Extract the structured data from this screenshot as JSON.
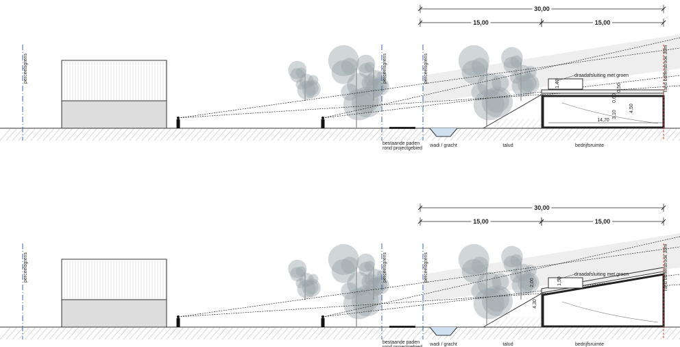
{
  "sections": [
    {
      "dimensions": {
        "total": "30,00",
        "left": "15,00",
        "right": "15,00"
      },
      "boundaries": [
        "perceelsgrens",
        "perceelsgrens",
        "perceelsgrens"
      ],
      "fence_label": "draadafsluiting met groen",
      "buffer_label": "rand bufferstrook 30m",
      "measurements": [
        "1,40",
        "0,60",
        "0,50",
        "3,10",
        "4,50",
        "14,70"
      ],
      "path_labels": [
        "bestaande paden",
        "rond projectgebied"
      ],
      "ground_labels": [
        "wadi / gracht",
        "talud",
        "bedrijfsruimte"
      ]
    },
    {
      "dimensions": {
        "total": "30,00",
        "left": "15,00",
        "right": "15,00"
      },
      "boundaries": [
        "perceelsgrens",
        "perceelsgrens",
        "perceelsgrens"
      ],
      "fence_label": "draadafsluiting met groen",
      "buffer_label": "rand bufferstrook 30m",
      "measurements": [
        "2,00",
        "1,50",
        "4,30"
      ],
      "path_labels": [
        "bestaande paden",
        "rond projectgebied"
      ],
      "ground_labels": [
        "wadi / gracht",
        "talud",
        "bedrijfsruimte"
      ]
    }
  ]
}
